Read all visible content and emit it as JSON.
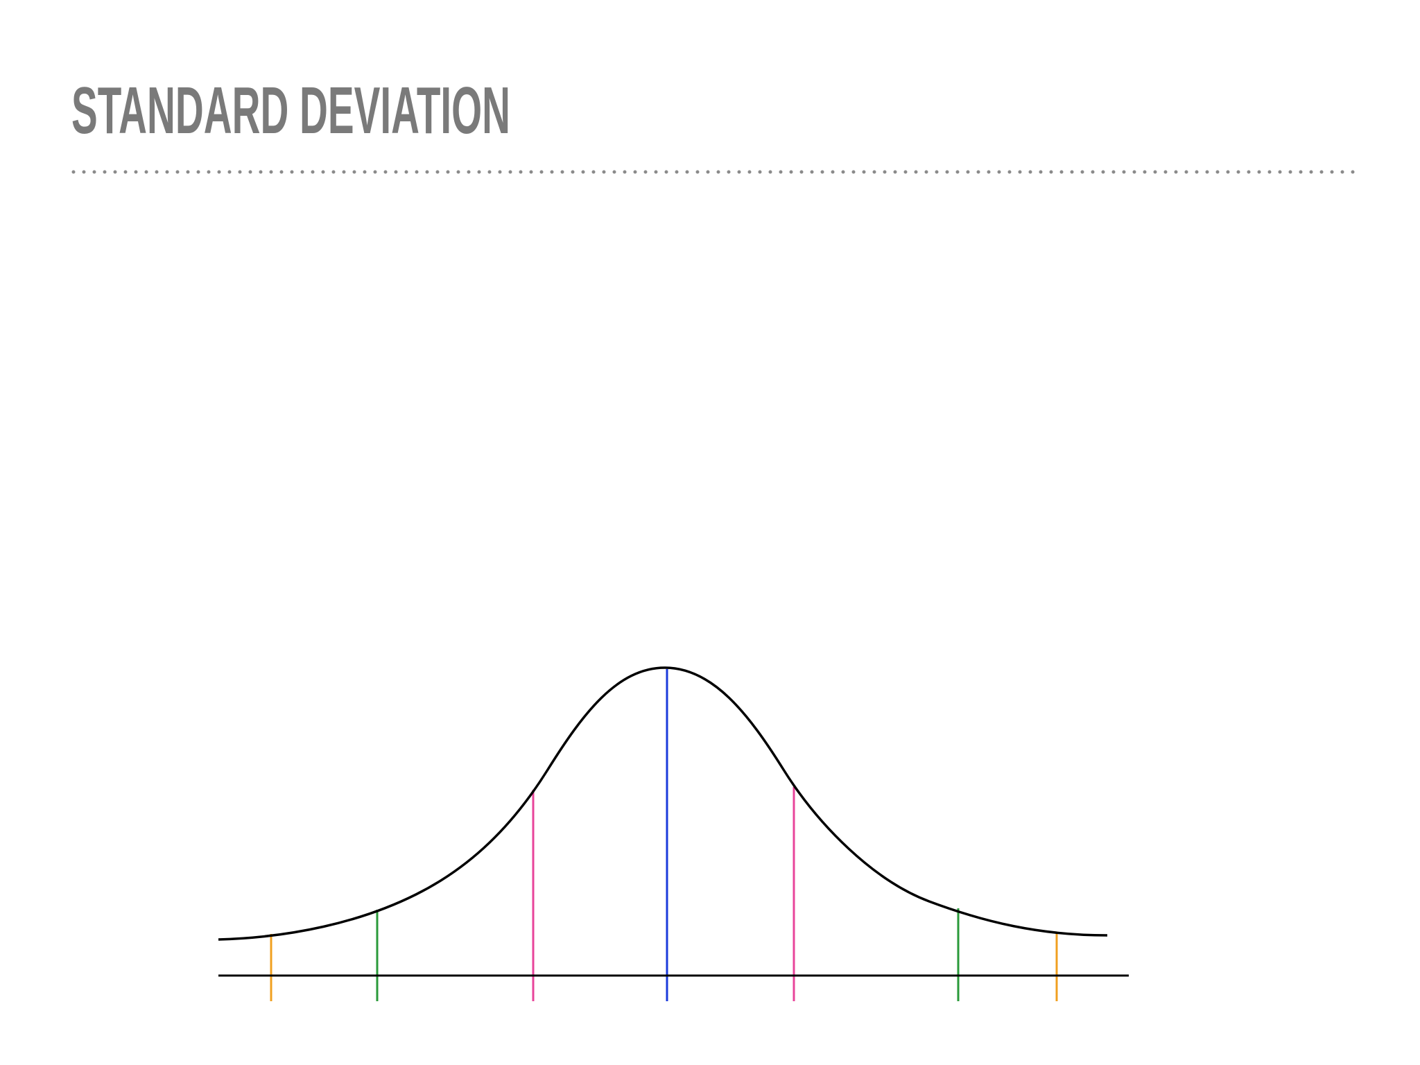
{
  "title": "STANDARD DEVIATION"
}
